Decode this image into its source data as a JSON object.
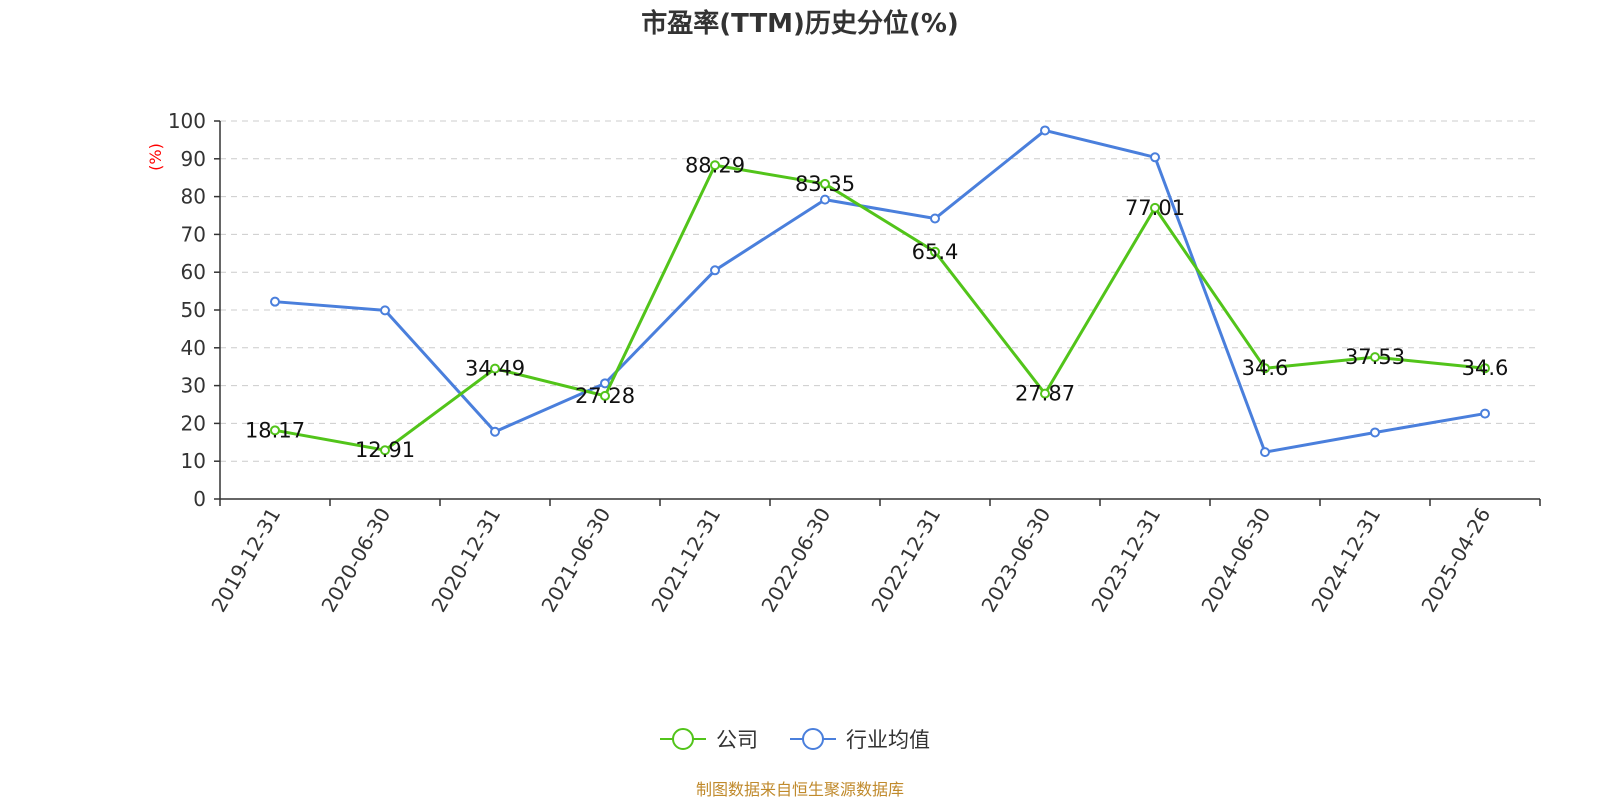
{
  "chart_data": {
    "type": "line",
    "title": "市盈率(TTM)历史分位(%)",
    "ylabel": "(%)",
    "ylim": [
      0,
      100
    ],
    "yticks": [
      0,
      10,
      20,
      30,
      40,
      50,
      60,
      70,
      80,
      90,
      100
    ],
    "grid": true,
    "legend_position": "bottom",
    "categories": [
      "2019-12-31",
      "2020-06-30",
      "2020-12-31",
      "2021-06-30",
      "2021-12-31",
      "2022-06-30",
      "2022-12-31",
      "2023-06-30",
      "2023-12-31",
      "2024-06-30",
      "2024-12-31",
      "2025-04-26"
    ],
    "series": [
      {
        "name": "公司",
        "color": "#52c41a",
        "show_labels": true,
        "values": [
          18.17,
          12.91,
          34.49,
          27.28,
          88.29,
          83.35,
          65.4,
          27.87,
          77.01,
          34.6,
          37.53,
          34.6
        ]
      },
      {
        "name": "行业均值",
        "color": "#4a7fdc",
        "show_labels": false,
        "values": [
          52.2,
          49.9,
          17.8,
          30.6,
          60.5,
          79.2,
          74.2,
          97.5,
          90.4,
          12.4,
          17.6,
          22.6
        ]
      }
    ],
    "source": "制图数据来自恒生聚源数据库"
  }
}
